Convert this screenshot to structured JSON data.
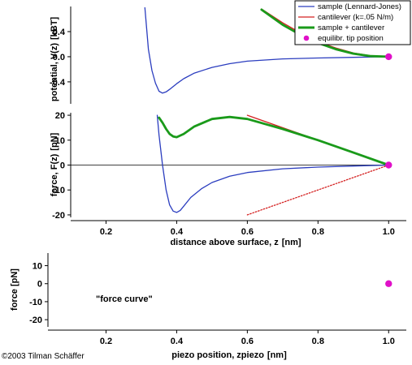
{
  "credit": "©2003 Tilman Schäffer",
  "colors": {
    "sample": "#2b3dbf",
    "cantilever": "#d42020",
    "sum": "#1a9a1a",
    "tip": "#e010c8",
    "axis": "#000000"
  },
  "chart_data": [
    {
      "type": "line",
      "id": "potential",
      "ylabel": "potential, V(z)",
      "ylabel_unit": "[kBT]",
      "xlim": [
        0.1,
        1.05
      ],
      "ylim": [
        -0.75,
        0.8
      ],
      "x_ticks": [],
      "y_ticks": [
        "0.4",
        "0.0",
        "-0.4"
      ],
      "legend": {
        "position": "top-right",
        "entries": [
          {
            "label": "sample (Lennard-Jones)",
            "color": "#2b3dbf",
            "marker": "line"
          },
          {
            "label": "cantilever (k=.05 N/m)",
            "color": "#d42020",
            "marker": "line"
          },
          {
            "label": "sample + cantilever",
            "color": "#1a9a1a",
            "marker": "thickline"
          },
          {
            "label": "equilibr. tip position",
            "color": "#e010c8",
            "marker": "dot"
          }
        ]
      },
      "series": [
        {
          "name": "sample (Lennard-Jones)",
          "color": "#2b3dbf",
          "x": [
            0.31,
            0.32,
            0.33,
            0.34,
            0.35,
            0.36,
            0.37,
            0.38,
            0.4,
            0.42,
            0.45,
            0.5,
            0.55,
            0.6,
            0.7,
            0.8,
            0.9,
            1.0
          ],
          "y": [
            0.78,
            0.12,
            -0.22,
            -0.42,
            -0.55,
            -0.58,
            -0.56,
            -0.52,
            -0.43,
            -0.35,
            -0.26,
            -0.17,
            -0.11,
            -0.07,
            -0.035,
            -0.02,
            -0.01,
            0.0
          ]
        },
        {
          "name": "cantilever (k=.05 N/m)",
          "color": "#d42020",
          "x": [
            0.64,
            0.7,
            0.75,
            0.8,
            0.85,
            0.9,
            0.95,
            1.0
          ],
          "y": [
            0.76,
            0.54,
            0.38,
            0.24,
            0.14,
            0.06,
            0.015,
            0.0
          ]
        },
        {
          "name": "sample + cantilever",
          "color": "#1a9a1a",
          "x": [
            0.64,
            0.7,
            0.75,
            0.8,
            0.85,
            0.9,
            0.95,
            1.0
          ],
          "y": [
            0.75,
            0.51,
            0.35,
            0.22,
            0.12,
            0.05,
            0.01,
            0.0
          ]
        }
      ],
      "points": [
        {
          "x": 1.0,
          "y": 0.0,
          "label": "equilibr. tip position"
        }
      ]
    },
    {
      "type": "line",
      "id": "force",
      "ylabel": "force, F(z)",
      "ylabel_unit": "[pN]",
      "xlabel": "distance above surface, z",
      "xlabel_unit": "[nm]",
      "xlim": [
        0.1,
        1.05
      ],
      "ylim": [
        -21,
        21
      ],
      "x_ticks": [
        "0.2",
        "0.4",
        "0.6",
        "0.8",
        "1.0"
      ],
      "y_ticks": [
        "20",
        "10",
        "0",
        "-10",
        "-20"
      ],
      "series": [
        {
          "name": "sample (Lennard-Jones)",
          "color": "#2b3dbf",
          "x": [
            0.345,
            0.35,
            0.36,
            0.37,
            0.38,
            0.39,
            0.4,
            0.41,
            0.42,
            0.44,
            0.47,
            0.5,
            0.55,
            0.6,
            0.7,
            0.8,
            0.9,
            1.0
          ],
          "y": [
            20,
            12,
            0,
            -10,
            -16,
            -18.5,
            -19,
            -18.2,
            -16.5,
            -13,
            -9.5,
            -7,
            -4.5,
            -3,
            -1.5,
            -0.8,
            -0.4,
            0.0
          ]
        },
        {
          "name": "cantilever (k=.05 N/m)",
          "color": "#d42020",
          "x": [
            0.6,
            1.0
          ],
          "y": [
            20,
            0
          ]
        },
        {
          "name": "cantilever reflected",
          "color": "#d42020",
          "style": "dotted",
          "x": [
            0.6,
            1.0
          ],
          "y": [
            -20,
            0
          ]
        },
        {
          "name": "sample + cantilever",
          "color": "#1a9a1a",
          "x": [
            0.35,
            0.36,
            0.37,
            0.38,
            0.39,
            0.4,
            0.42,
            0.45,
            0.5,
            0.55,
            0.6,
            0.7,
            0.8,
            0.9,
            1.0
          ],
          "y": [
            19,
            17,
            14.5,
            12.5,
            11.5,
            11.2,
            12.5,
            15.5,
            18.5,
            19.3,
            18.5,
            14.5,
            10,
            5,
            0.0
          ]
        }
      ],
      "points": [
        {
          "x": 1.0,
          "y": 0.0,
          "label": "equilibr. tip position"
        }
      ]
    },
    {
      "type": "scatter",
      "id": "forcecurve",
      "ylabel": "force [pN]",
      "xlabel": "piezo position, zpiezo",
      "xlabel_unit": "[nm]",
      "annotation": "\"force curve\"",
      "xlim": [
        0.1,
        1.05
      ],
      "ylim": [
        -24,
        17
      ],
      "x_ticks": [
        "0.2",
        "0.4",
        "0.6",
        "0.8",
        "1.0"
      ],
      "y_ticks": [
        "10",
        "0",
        "-10",
        "-20"
      ],
      "points": [
        {
          "x": 1.0,
          "y": 0.0
        }
      ]
    }
  ]
}
